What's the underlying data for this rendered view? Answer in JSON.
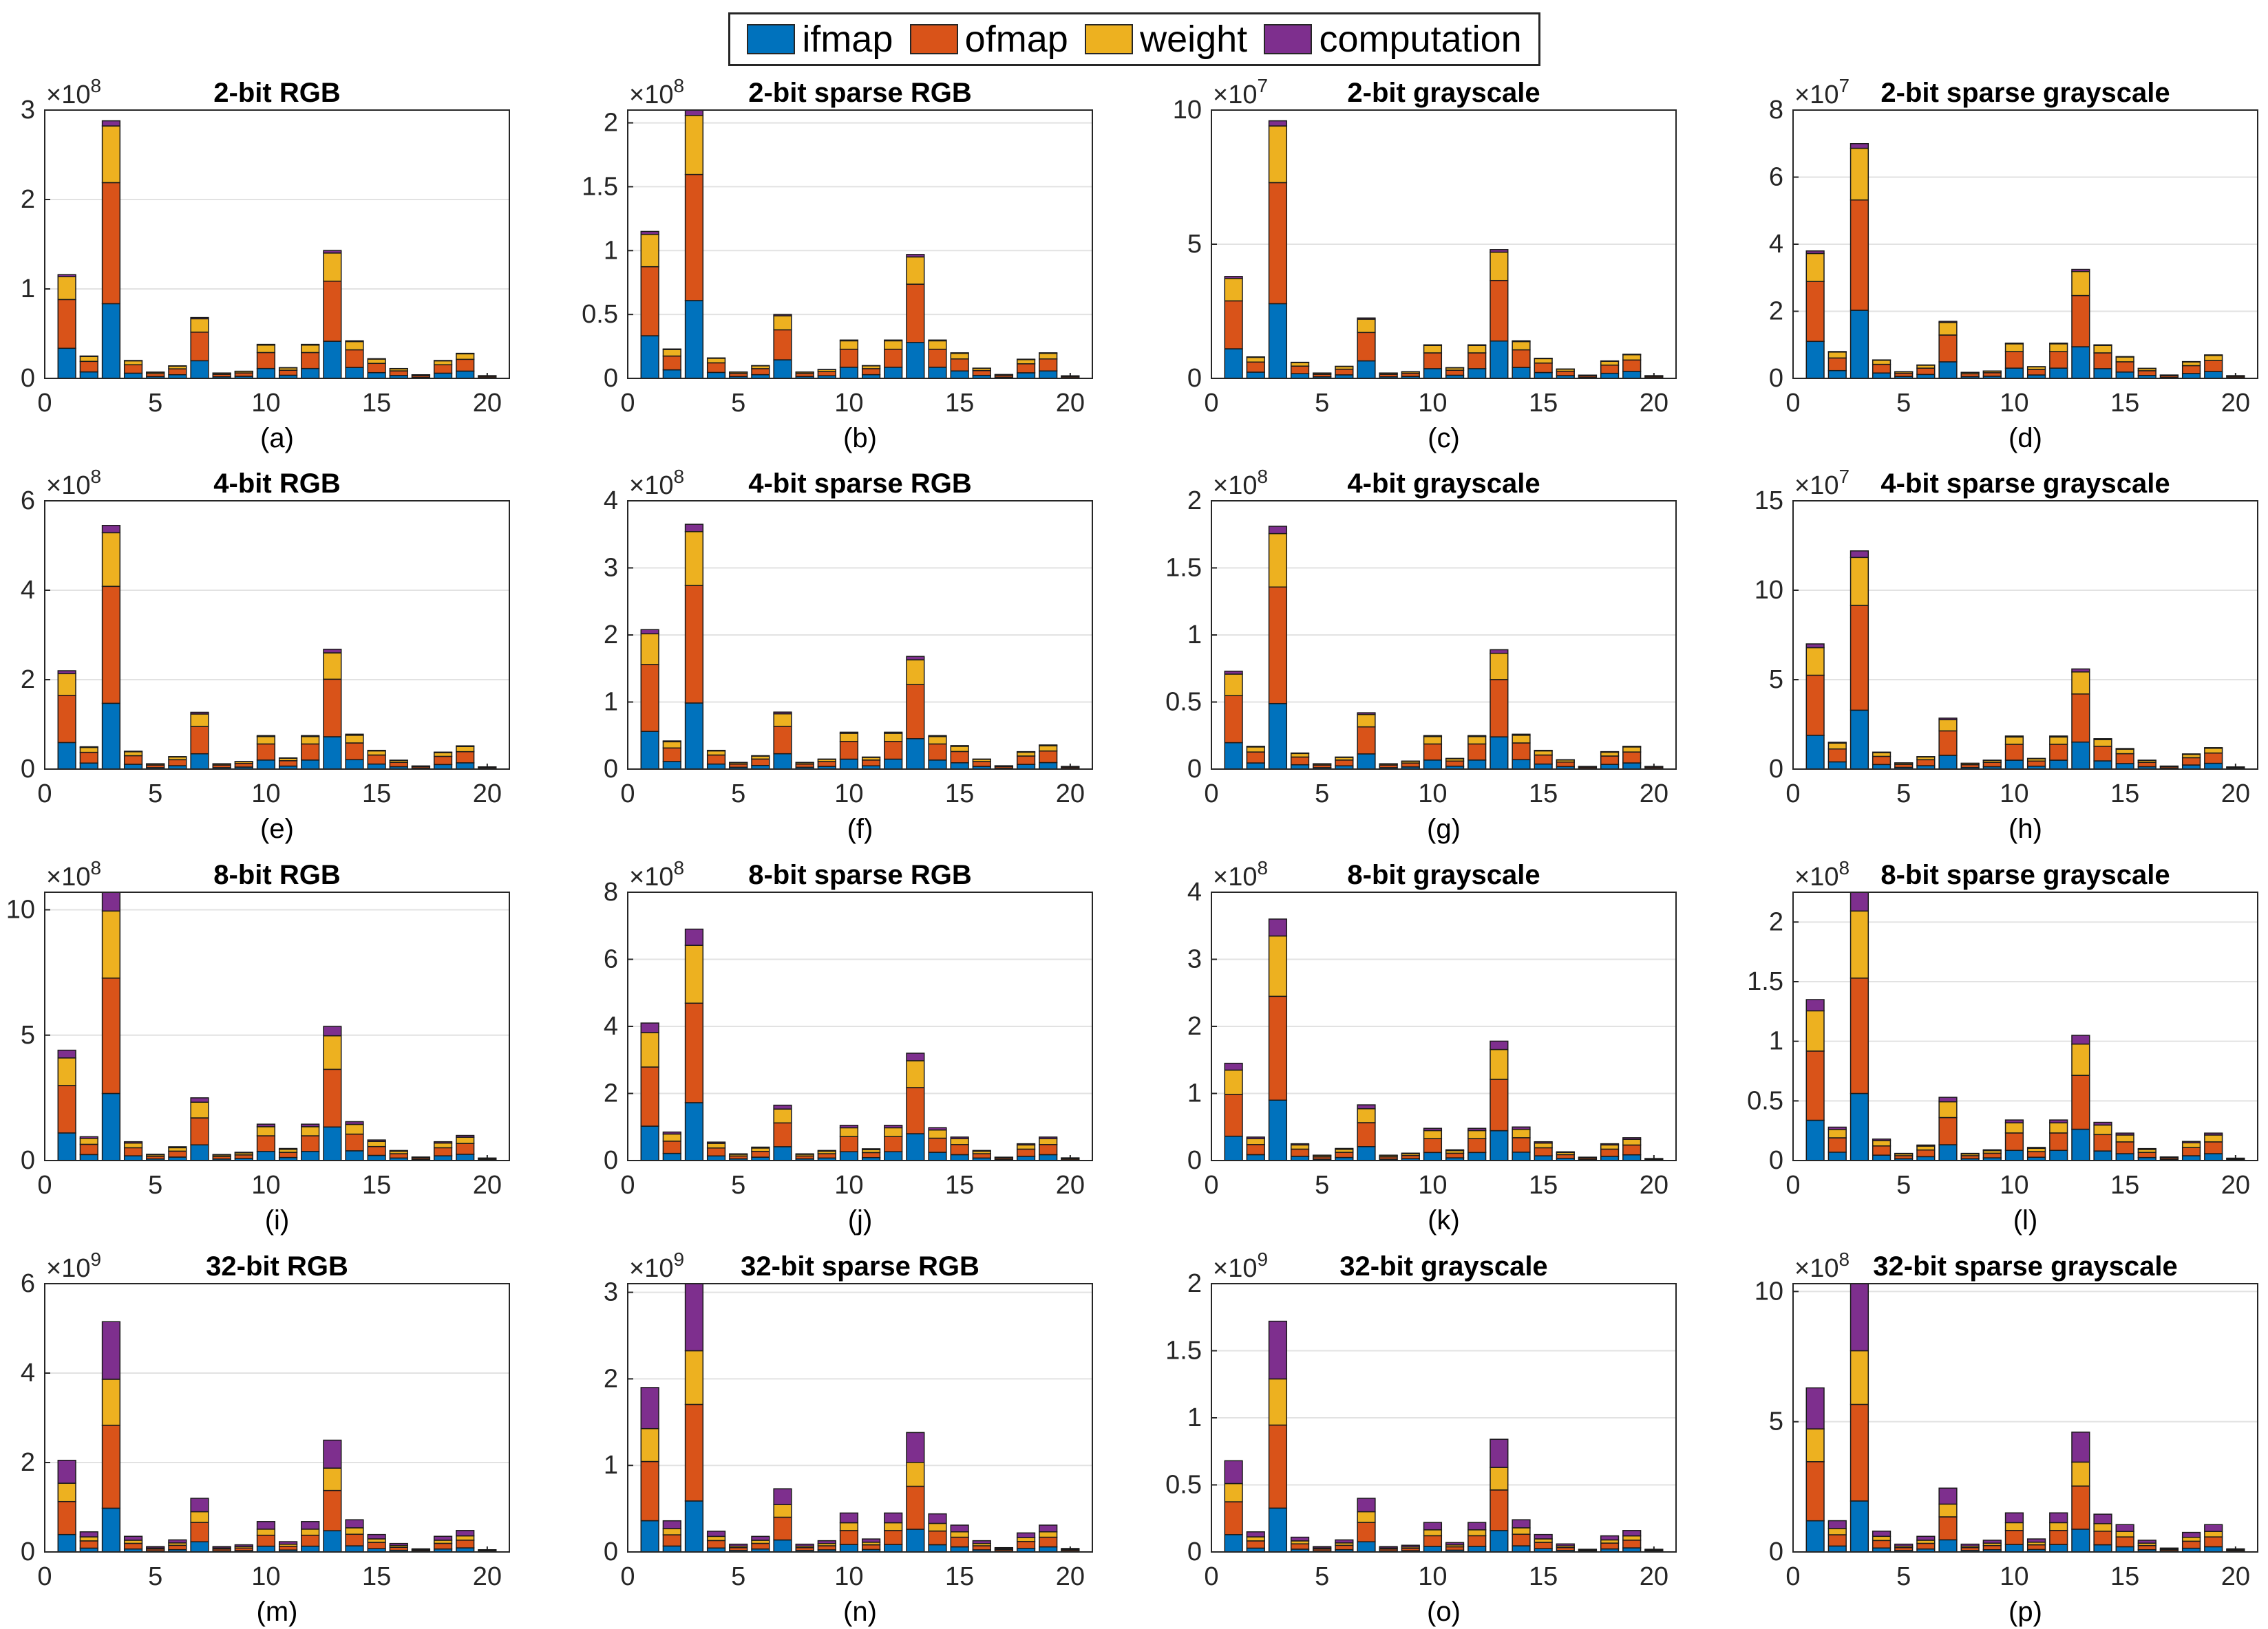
{
  "legend": {
    "ifmap": {
      "label": "ifmap",
      "color": "#0072BD"
    },
    "ofmap": {
      "label": "ofmap",
      "color": "#D95319"
    },
    "weight": {
      "label": "weight",
      "color": "#EDB120"
    },
    "computation": {
      "label": "computation",
      "color": "#7E2F8E"
    }
  },
  "chart_data": [
    {
      "type": "bar",
      "stacked": true,
      "title": "2-bit RGB",
      "caption": "(a)",
      "exponent": "8",
      "ylim": [
        0,
        3
      ],
      "yticks": [
        0,
        1,
        2,
        3
      ],
      "xticks": [
        0,
        5,
        10,
        15,
        20
      ],
      "xlim": [
        0,
        21
      ],
      "categories": [
        1,
        2,
        3,
        4,
        5,
        6,
        7,
        8,
        9,
        10,
        11,
        12,
        13,
        14,
        15,
        16,
        17,
        18,
        19,
        20
      ],
      "totals": [
        1.16,
        0.25,
        2.88,
        0.2,
        0.07,
        0.14,
        0.68,
        0.06,
        0.08,
        0.38,
        0.12,
        0.38,
        1.43,
        0.42,
        0.22,
        0.11,
        0.04,
        0.2,
        0.28,
        0.03
      ],
      "series_ratio": {
        "ifmap": 0.29,
        "ofmap": 0.47,
        "weight": 0.22,
        "computation": 0.02
      }
    },
    {
      "type": "bar",
      "stacked": true,
      "title": "2-bit sparse RGB",
      "caption": "(b)",
      "exponent": "8",
      "ylim": [
        0,
        2.1
      ],
      "yticks": [
        0,
        0.5,
        1,
        1.5,
        2
      ],
      "xticks": [
        0,
        5,
        10,
        15,
        20
      ],
      "xlim": [
        0,
        21
      ],
      "categories": [
        1,
        2,
        3,
        4,
        5,
        6,
        7,
        8,
        9,
        10,
        11,
        12,
        13,
        14,
        15,
        16,
        17,
        18,
        19,
        20
      ],
      "totals": [
        1.15,
        0.23,
        2.1,
        0.16,
        0.05,
        0.1,
        0.5,
        0.05,
        0.07,
        0.3,
        0.1,
        0.3,
        0.97,
        0.3,
        0.2,
        0.08,
        0.03,
        0.15,
        0.2,
        0.02
      ],
      "series_ratio": {
        "ifmap": 0.29,
        "ofmap": 0.47,
        "weight": 0.22,
        "computation": 0.02
      }
    },
    {
      "type": "bar",
      "stacked": true,
      "title": "2-bit grayscale",
      "caption": "(c)",
      "exponent": "7",
      "ylim": [
        0,
        10
      ],
      "yticks": [
        0,
        5,
        10
      ],
      "xticks": [
        0,
        5,
        10,
        15,
        20
      ],
      "xlim": [
        0,
        21
      ],
      "categories": [
        1,
        2,
        3,
        4,
        5,
        6,
        7,
        8,
        9,
        10,
        11,
        12,
        13,
        14,
        15,
        16,
        17,
        18,
        19,
        20
      ],
      "totals": [
        3.8,
        0.8,
        9.6,
        0.6,
        0.2,
        0.45,
        2.25,
        0.2,
        0.25,
        1.25,
        0.4,
        1.25,
        4.8,
        1.4,
        0.75,
        0.35,
        0.12,
        0.65,
        0.9,
        0.1
      ],
      "series_ratio": {
        "ifmap": 0.29,
        "ofmap": 0.47,
        "weight": 0.22,
        "computation": 0.02
      }
    },
    {
      "type": "bar",
      "stacked": true,
      "title": "2-bit sparse grayscale",
      "caption": "(d)",
      "exponent": "7",
      "ylim": [
        0,
        8
      ],
      "yticks": [
        0,
        2,
        4,
        6,
        8
      ],
      "xticks": [
        0,
        5,
        10,
        15,
        20
      ],
      "xlim": [
        0,
        21
      ],
      "categories": [
        1,
        2,
        3,
        4,
        5,
        6,
        7,
        8,
        9,
        10,
        11,
        12,
        13,
        14,
        15,
        16,
        17,
        18,
        19,
        20
      ],
      "totals": [
        3.8,
        0.8,
        7.0,
        0.55,
        0.2,
        0.4,
        1.7,
        0.18,
        0.22,
        1.05,
        0.35,
        1.05,
        3.25,
        1.0,
        0.65,
        0.3,
        0.1,
        0.5,
        0.7,
        0.08
      ],
      "series_ratio": {
        "ifmap": 0.29,
        "ofmap": 0.47,
        "weight": 0.22,
        "computation": 0.02
      }
    },
    {
      "type": "bar",
      "stacked": true,
      "title": "4-bit RGB",
      "caption": "(e)",
      "exponent": "8",
      "ylim": [
        0,
        6
      ],
      "yticks": [
        0,
        2,
        4,
        6
      ],
      "xticks": [
        0,
        5,
        10,
        15,
        20
      ],
      "xlim": [
        0,
        21
      ],
      "categories": [
        1,
        2,
        3,
        4,
        5,
        6,
        7,
        8,
        9,
        10,
        11,
        12,
        13,
        14,
        15,
        16,
        17,
        18,
        19,
        20
      ],
      "totals": [
        2.2,
        0.5,
        5.45,
        0.4,
        0.12,
        0.28,
        1.27,
        0.12,
        0.17,
        0.75,
        0.25,
        0.75,
        2.68,
        0.78,
        0.42,
        0.2,
        0.07,
        0.38,
        0.52,
        0.05
      ],
      "series_ratio": {
        "ifmap": 0.27,
        "ofmap": 0.48,
        "weight": 0.22,
        "computation": 0.03
      }
    },
    {
      "type": "bar",
      "stacked": true,
      "title": "4-bit sparse RGB",
      "caption": "(f)",
      "exponent": "8",
      "ylim": [
        0,
        4
      ],
      "yticks": [
        0,
        1,
        2,
        3,
        4
      ],
      "xticks": [
        0,
        5,
        10,
        15,
        20
      ],
      "xlim": [
        0,
        21
      ],
      "categories": [
        1,
        2,
        3,
        4,
        5,
        6,
        7,
        8,
        9,
        10,
        11,
        12,
        13,
        14,
        15,
        16,
        17,
        18,
        19,
        20
      ],
      "totals": [
        2.08,
        0.42,
        3.65,
        0.28,
        0.1,
        0.2,
        0.85,
        0.1,
        0.15,
        0.55,
        0.18,
        0.55,
        1.68,
        0.5,
        0.35,
        0.15,
        0.05,
        0.26,
        0.36,
        0.04
      ],
      "series_ratio": {
        "ifmap": 0.27,
        "ofmap": 0.48,
        "weight": 0.22,
        "computation": 0.03
      }
    },
    {
      "type": "bar",
      "stacked": true,
      "title": "4-bit grayscale",
      "caption": "(g)",
      "exponent": "8",
      "ylim": [
        0,
        2
      ],
      "yticks": [
        0,
        0.5,
        1,
        1.5,
        2
      ],
      "xticks": [
        0,
        5,
        10,
        15,
        20
      ],
      "xlim": [
        0,
        21
      ],
      "categories": [
        1,
        2,
        3,
        4,
        5,
        6,
        7,
        8,
        9,
        10,
        11,
        12,
        13,
        14,
        15,
        16,
        17,
        18,
        19,
        20
      ],
      "totals": [
        0.73,
        0.17,
        1.81,
        0.12,
        0.04,
        0.09,
        0.42,
        0.04,
        0.06,
        0.25,
        0.08,
        0.25,
        0.89,
        0.26,
        0.14,
        0.07,
        0.02,
        0.13,
        0.17,
        0.02
      ],
      "series_ratio": {
        "ifmap": 0.27,
        "ofmap": 0.48,
        "weight": 0.22,
        "computation": 0.03
      }
    },
    {
      "type": "bar",
      "stacked": true,
      "title": "4-bit sparse grayscale",
      "caption": "(h)",
      "exponent": "7",
      "ylim": [
        0,
        15
      ],
      "yticks": [
        0,
        5,
        10,
        15
      ],
      "xticks": [
        0,
        5,
        10,
        15,
        20
      ],
      "xlim": [
        0,
        21
      ],
      "categories": [
        1,
        2,
        3,
        4,
        5,
        6,
        7,
        8,
        9,
        10,
        11,
        12,
        13,
        14,
        15,
        16,
        17,
        18,
        19,
        20
      ],
      "totals": [
        7.0,
        1.5,
        12.2,
        0.95,
        0.35,
        0.7,
        2.85,
        0.33,
        0.5,
        1.85,
        0.6,
        1.85,
        5.6,
        1.7,
        1.15,
        0.5,
        0.17,
        0.85,
        1.2,
        0.12
      ],
      "series_ratio": {
        "ifmap": 0.27,
        "ofmap": 0.48,
        "weight": 0.22,
        "computation": 0.03
      }
    },
    {
      "type": "bar",
      "stacked": true,
      "title": "8-bit RGB",
      "caption": "(i)",
      "exponent": "8",
      "ylim": [
        0,
        10.7
      ],
      "yticks": [
        0,
        5,
        10
      ],
      "xticks": [
        0,
        5,
        10,
        15,
        20
      ],
      "xlim": [
        0,
        21
      ],
      "categories": [
        1,
        2,
        3,
        4,
        5,
        6,
        7,
        8,
        9,
        10,
        11,
        12,
        13,
        14,
        15,
        16,
        17,
        18,
        19,
        20
      ],
      "totals": [
        4.4,
        0.95,
        10.7,
        0.75,
        0.25,
        0.55,
        2.5,
        0.24,
        0.33,
        1.45,
        0.48,
        1.45,
        5.35,
        1.55,
        0.82,
        0.4,
        0.14,
        0.75,
        1.0,
        0.1
      ],
      "series_ratio": {
        "ifmap": 0.25,
        "ofmap": 0.43,
        "weight": 0.25,
        "computation": 0.07
      }
    },
    {
      "type": "bar",
      "stacked": true,
      "title": "8-bit sparse RGB",
      "caption": "(j)",
      "exponent": "8",
      "ylim": [
        0,
        8
      ],
      "yticks": [
        0,
        2,
        4,
        6,
        8
      ],
      "xticks": [
        0,
        5,
        10,
        15,
        20
      ],
      "xlim": [
        0,
        21
      ],
      "categories": [
        1,
        2,
        3,
        4,
        5,
        6,
        7,
        8,
        9,
        10,
        11,
        12,
        13,
        14,
        15,
        16,
        17,
        18,
        19,
        20
      ],
      "totals": [
        4.1,
        0.85,
        6.9,
        0.55,
        0.2,
        0.4,
        1.65,
        0.2,
        0.3,
        1.05,
        0.35,
        1.05,
        3.2,
        0.98,
        0.7,
        0.3,
        0.1,
        0.5,
        0.7,
        0.08
      ],
      "series_ratio": {
        "ifmap": 0.25,
        "ofmap": 0.43,
        "weight": 0.25,
        "computation": 0.07
      }
    },
    {
      "type": "bar",
      "stacked": true,
      "title": "8-bit grayscale",
      "caption": "(k)",
      "exponent": "8",
      "ylim": [
        0,
        4
      ],
      "yticks": [
        0,
        1,
        2,
        3,
        4
      ],
      "xticks": [
        0,
        5,
        10,
        15,
        20
      ],
      "xlim": [
        0,
        21
      ],
      "categories": [
        1,
        2,
        3,
        4,
        5,
        6,
        7,
        8,
        9,
        10,
        11,
        12,
        13,
        14,
        15,
        16,
        17,
        18,
        19,
        20
      ],
      "totals": [
        1.45,
        0.35,
        3.6,
        0.25,
        0.08,
        0.18,
        0.83,
        0.08,
        0.11,
        0.48,
        0.16,
        0.48,
        1.78,
        0.5,
        0.28,
        0.13,
        0.05,
        0.25,
        0.34,
        0.03
      ],
      "series_ratio": {
        "ifmap": 0.25,
        "ofmap": 0.43,
        "weight": 0.25,
        "computation": 0.07
      }
    },
    {
      "type": "bar",
      "stacked": true,
      "title": "8-bit sparse grayscale",
      "caption": "(l)",
      "exponent": "8",
      "ylim": [
        0,
        2.25
      ],
      "yticks": [
        0,
        0.5,
        1,
        1.5,
        2
      ],
      "xticks": [
        0,
        5,
        10,
        15,
        20
      ],
      "xlim": [
        0,
        21
      ],
      "categories": [
        1,
        2,
        3,
        4,
        5,
        6,
        7,
        8,
        9,
        10,
        11,
        12,
        13,
        14,
        15,
        16,
        17,
        18,
        19,
        20
      ],
      "totals": [
        1.35,
        0.28,
        2.25,
        0.18,
        0.06,
        0.13,
        0.53,
        0.06,
        0.09,
        0.34,
        0.11,
        0.34,
        1.05,
        0.32,
        0.23,
        0.1,
        0.03,
        0.16,
        0.23,
        0.02
      ],
      "series_ratio": {
        "ifmap": 0.25,
        "ofmap": 0.43,
        "weight": 0.25,
        "computation": 0.07
      }
    },
    {
      "type": "bar",
      "stacked": true,
      "title": "32-bit RGB",
      "caption": "(m)",
      "exponent": "9",
      "ylim": [
        0,
        6
      ],
      "yticks": [
        0,
        2,
        4,
        6
      ],
      "xticks": [
        0,
        5,
        10,
        15,
        20
      ],
      "xlim": [
        0,
        21
      ],
      "categories": [
        1,
        2,
        3,
        4,
        5,
        6,
        7,
        8,
        9,
        10,
        11,
        12,
        13,
        14,
        15,
        16,
        17,
        18,
        19,
        20
      ],
      "totals": [
        2.05,
        0.45,
        5.15,
        0.35,
        0.12,
        0.27,
        1.2,
        0.12,
        0.16,
        0.68,
        0.23,
        0.68,
        2.5,
        0.72,
        0.39,
        0.19,
        0.07,
        0.35,
        0.48,
        0.05
      ],
      "series_ratio": {
        "ifmap": 0.19,
        "ofmap": 0.36,
        "weight": 0.2,
        "computation": 0.25
      }
    },
    {
      "type": "bar",
      "stacked": true,
      "title": "32-bit sparse RGB",
      "caption": "(n)",
      "exponent": "9",
      "ylim": [
        0,
        3.1
      ],
      "yticks": [
        0,
        1,
        2,
        3
      ],
      "xticks": [
        0,
        5,
        10,
        15,
        20
      ],
      "xlim": [
        0,
        21
      ],
      "categories": [
        1,
        2,
        3,
        4,
        5,
        6,
        7,
        8,
        9,
        10,
        11,
        12,
        13,
        14,
        15,
        16,
        17,
        18,
        19,
        20
      ],
      "totals": [
        1.9,
        0.36,
        3.1,
        0.24,
        0.09,
        0.18,
        0.73,
        0.09,
        0.13,
        0.45,
        0.15,
        0.45,
        1.38,
        0.44,
        0.31,
        0.13,
        0.05,
        0.22,
        0.31,
        0.04
      ],
      "series_ratio": {
        "ifmap": 0.19,
        "ofmap": 0.36,
        "weight": 0.2,
        "computation": 0.25
      }
    },
    {
      "type": "bar",
      "stacked": true,
      "title": "32-bit grayscale",
      "caption": "(o)",
      "exponent": "9",
      "ylim": [
        0,
        2
      ],
      "yticks": [
        0,
        0.5,
        1,
        1.5,
        2
      ],
      "xticks": [
        0,
        5,
        10,
        15,
        20
      ],
      "xlim": [
        0,
        21
      ],
      "categories": [
        1,
        2,
        3,
        4,
        5,
        6,
        7,
        8,
        9,
        10,
        11,
        12,
        13,
        14,
        15,
        16,
        17,
        18,
        19,
        20
      ],
      "totals": [
        0.68,
        0.15,
        1.72,
        0.11,
        0.04,
        0.09,
        0.4,
        0.04,
        0.05,
        0.22,
        0.07,
        0.22,
        0.84,
        0.24,
        0.13,
        0.06,
        0.02,
        0.12,
        0.16,
        0.02
      ],
      "series_ratio": {
        "ifmap": 0.19,
        "ofmap": 0.36,
        "weight": 0.2,
        "computation": 0.25
      }
    },
    {
      "type": "bar",
      "stacked": true,
      "title": "32-bit sparse grayscale",
      "caption": "(p)",
      "exponent": "8",
      "ylim": [
        0,
        10.3
      ],
      "yticks": [
        0,
        5,
        10
      ],
      "xticks": [
        0,
        5,
        10,
        15,
        20
      ],
      "xlim": [
        0,
        21
      ],
      "categories": [
        1,
        2,
        3,
        4,
        5,
        6,
        7,
        8,
        9,
        10,
        11,
        12,
        13,
        14,
        15,
        16,
        17,
        18,
        19,
        20
      ],
      "totals": [
        6.3,
        1.2,
        10.3,
        0.8,
        0.3,
        0.6,
        2.45,
        0.3,
        0.45,
        1.5,
        0.5,
        1.5,
        4.6,
        1.45,
        1.05,
        0.45,
        0.15,
        0.75,
        1.05,
        0.12
      ],
      "series_ratio": {
        "ifmap": 0.19,
        "ofmap": 0.36,
        "weight": 0.2,
        "computation": 0.25
      }
    }
  ]
}
